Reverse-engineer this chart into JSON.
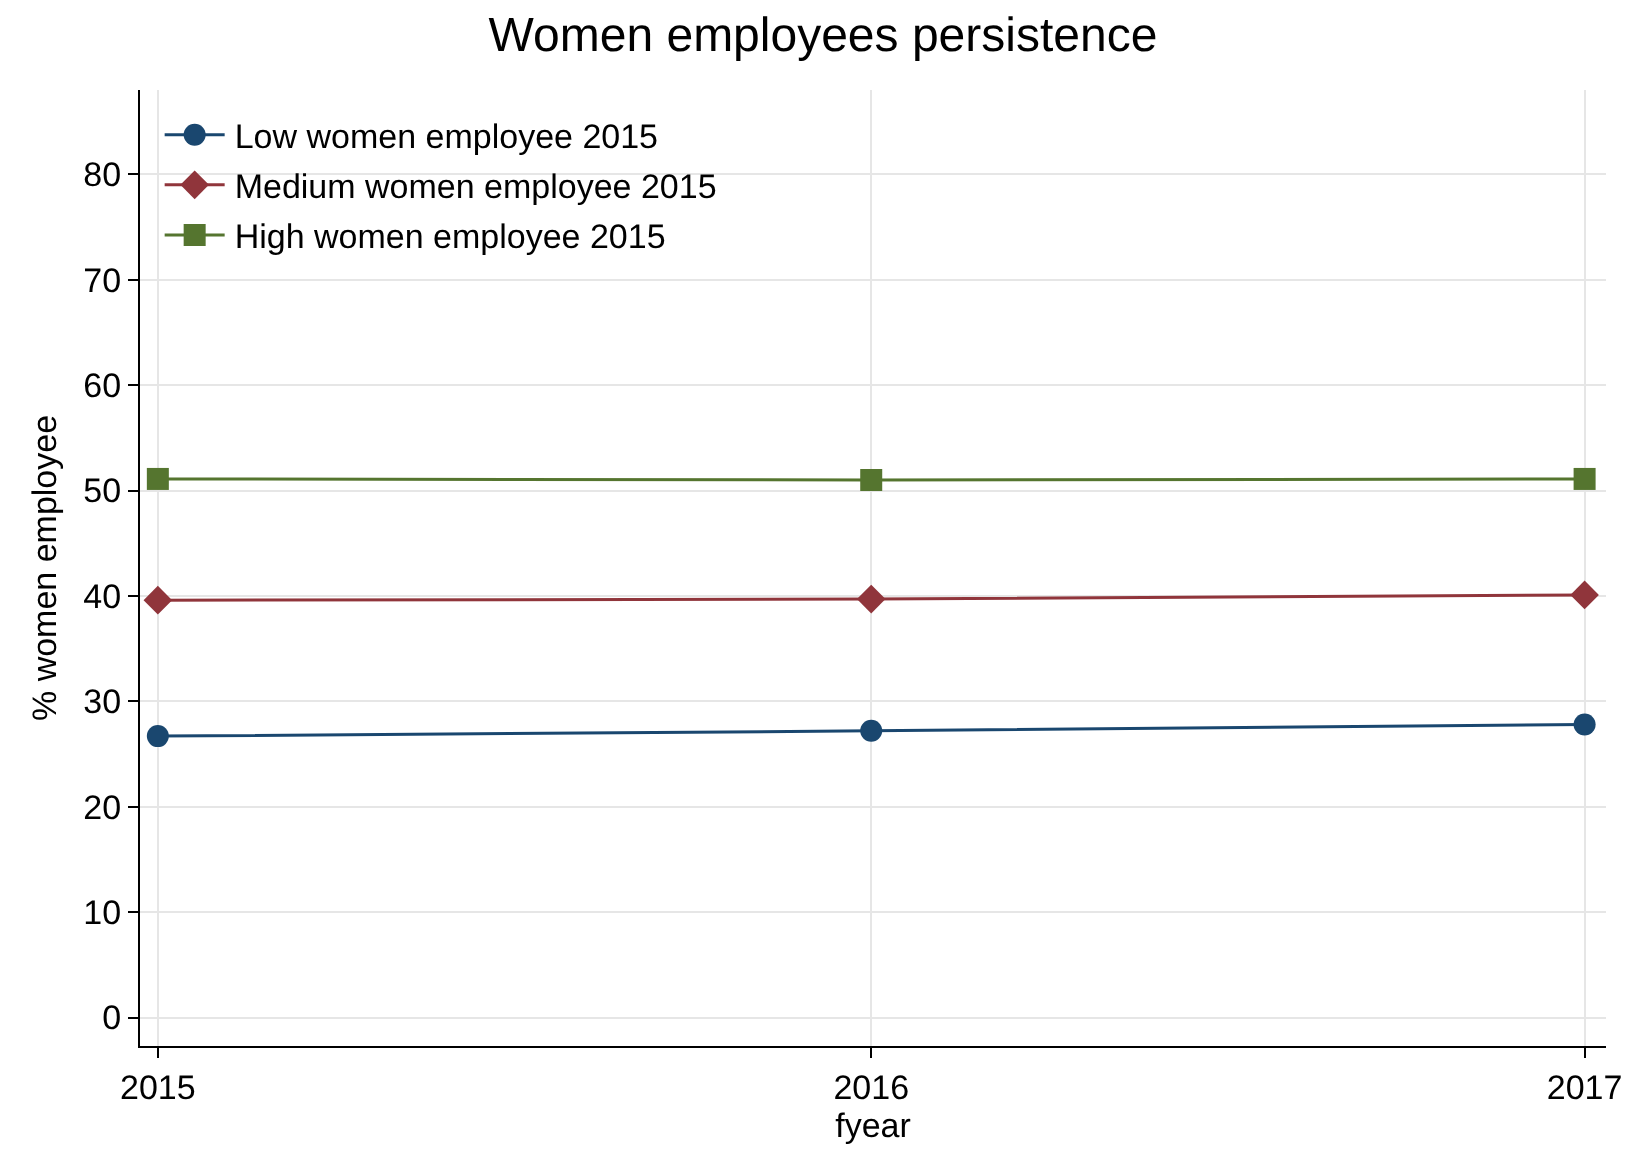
{
  "chart_data": {
    "type": "line",
    "title": "Women employees persistence",
    "xlabel": "fyear",
    "ylabel": "% women employee",
    "x": [
      2015,
      2016,
      2017
    ],
    "series": [
      {
        "name": "Low women employee 2015",
        "color": "#1a476f",
        "marker": "circle",
        "values": [
          26.7,
          27.2,
          27.8
        ]
      },
      {
        "name": "Medium women employee 2015",
        "color": "#90353b",
        "marker": "diamond",
        "values": [
          39.6,
          39.7,
          40.1
        ]
      },
      {
        "name": "High women employee 2015",
        "color": "#55752f",
        "marker": "square",
        "values": [
          51.1,
          51.0,
          51.1
        ]
      }
    ],
    "xlim": [
      2014.975,
      2017.03
    ],
    "xticks": [
      2015,
      2016,
      2017
    ],
    "ylim": [
      -2.7,
      88
    ],
    "yticks": [
      0,
      10,
      20,
      30,
      40,
      50,
      60,
      70,
      80
    ],
    "grid": true,
    "legend": "top left",
    "line_style": "solid"
  }
}
